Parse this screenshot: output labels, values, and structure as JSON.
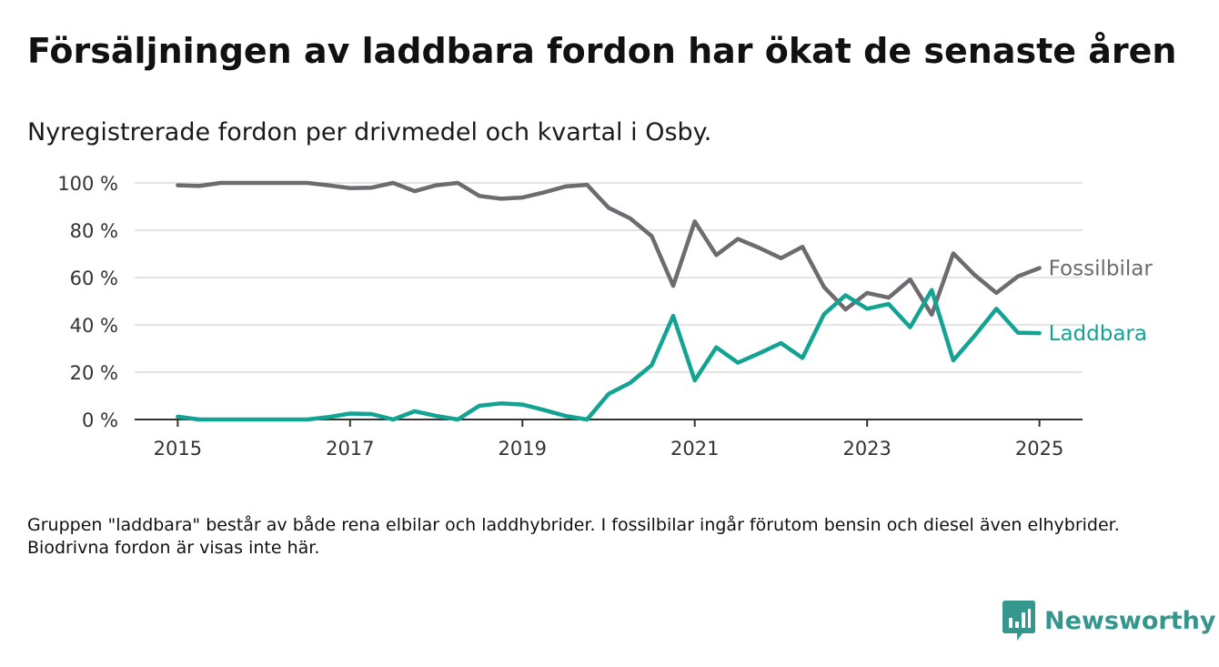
{
  "header": {
    "title": "Försäljningen av laddbara fordon har ökat de senaste åren",
    "subtitle": "Nyregistrerade fordon per drivmedel och kvartal i Osby."
  },
  "footnote": "Gruppen \"laddbara\" består av både rena elbilar och laddhybrider. I fossilbilar ingår förutom bensin och diesel även elhybrider. Biodrivna fordon är visas inte här.",
  "brand": {
    "name": "Newsworthy",
    "icon": "newsworthy-logo-icon",
    "color": "#35968e"
  },
  "chart_data": {
    "type": "line",
    "x_unit": "year (quarterly)",
    "xlim": [
      2014.5,
      2025.5
    ],
    "ylim": [
      0,
      100
    ],
    "y_ticks": [
      0,
      20,
      40,
      60,
      80,
      100
    ],
    "y_tick_format": "{v} %",
    "x_ticks": [
      2015,
      2017,
      2019,
      2021,
      2023,
      2025
    ],
    "grid": "horizontal",
    "legend": "inline labels at line ends",
    "x": [
      2015.0,
      2015.25,
      2015.5,
      2015.75,
      2016.0,
      2016.25,
      2016.5,
      2016.75,
      2017.0,
      2017.25,
      2017.5,
      2017.75,
      2018.0,
      2018.25,
      2018.5,
      2018.75,
      2019.0,
      2019.25,
      2019.5,
      2019.75,
      2020.0,
      2020.25,
      2020.5,
      2020.75,
      2021.0,
      2021.25,
      2021.5,
      2021.75,
      2022.0,
      2022.25,
      2022.5,
      2022.75,
      2023.0,
      2023.25,
      2023.5,
      2023.75,
      2024.0,
      2024.25,
      2024.5,
      2024.75,
      2025.0
    ],
    "series": [
      {
        "name": "Fossilbilar",
        "color": "#6d6b70",
        "values": [
          99,
          98.7,
          100,
          100,
          100,
          100,
          100,
          99,
          97.8,
          98,
          100,
          96.5,
          99,
          100,
          94.5,
          93.3,
          93.8,
          96,
          98.5,
          99.2,
          89.5,
          85,
          77.5,
          56.5,
          83.7,
          69.5,
          76.3,
          72.5,
          68.2,
          73,
          56,
          46.5,
          53.5,
          51.5,
          59.2,
          44.3,
          70.2,
          61,
          53.5,
          60.5,
          64
        ]
      },
      {
        "name": "Laddbara",
        "color": "#12a392",
        "values": [
          1.2,
          0,
          0,
          0,
          0,
          0,
          0,
          1,
          2.5,
          2.3,
          0,
          3.5,
          1.5,
          0,
          5.8,
          6.8,
          6.3,
          4,
          1.5,
          0,
          10.8,
          15.5,
          23,
          43.8,
          16.5,
          30.5,
          24,
          28,
          32.3,
          26,
          44.5,
          52.5,
          46.8,
          48.8,
          39,
          54.7,
          25,
          35.5,
          46.8,
          36.7,
          36.5
        ]
      }
    ]
  }
}
